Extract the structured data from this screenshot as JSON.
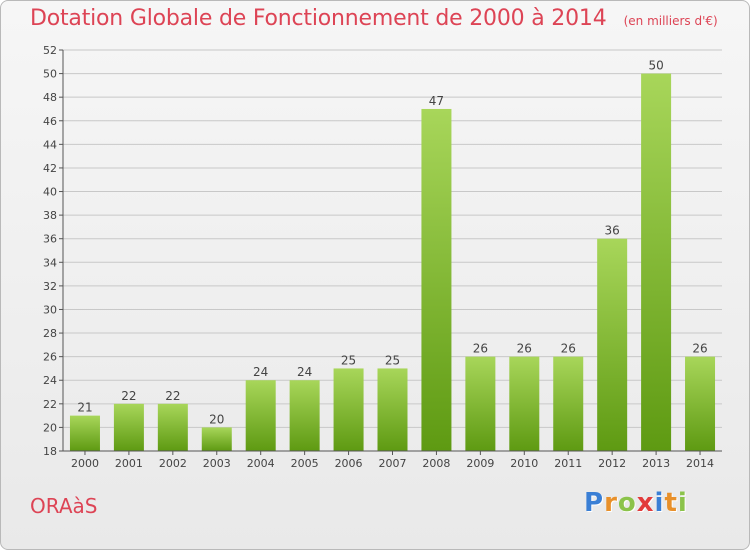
{
  "header": {
    "title": "Dotation Globale de Fonctionnement de 2000 à 2014",
    "unit": "(en milliers d'€)"
  },
  "footer": {
    "commune": "ORAàS",
    "logo_letters": [
      "P",
      "r",
      "o",
      "x",
      "i",
      "t",
      "i"
    ],
    "logo_colors": [
      "#3a7fd5",
      "#e8902a",
      "#8bc34a",
      "#e23b3b",
      "#3a7fd5",
      "#e8902a",
      "#8bc34a"
    ]
  },
  "colors": {
    "bar_top": "#a8d65a",
    "bar_bottom": "#5e9a12",
    "grid": "#c8c8c8",
    "axis": "#555555",
    "title": "#dd4455"
  },
  "chart_data": {
    "type": "bar",
    "title": "Dotation Globale de Fonctionnement de 2000 à 2014",
    "categories": [
      "2000",
      "2001",
      "2002",
      "2003",
      "2004",
      "2005",
      "2006",
      "2007",
      "2008",
      "2009",
      "2010",
      "2011",
      "2012",
      "2013",
      "2014"
    ],
    "values": [
      21,
      22,
      22,
      20,
      24,
      24,
      25,
      25,
      47,
      26,
      26,
      26,
      36,
      50,
      26
    ],
    "ylim": [
      18,
      52
    ],
    "yticks": [
      18,
      20,
      22,
      24,
      26,
      28,
      30,
      32,
      34,
      36,
      38,
      40,
      42,
      44,
      46,
      48,
      50,
      52
    ],
    "grid": true,
    "data_labels": true
  }
}
